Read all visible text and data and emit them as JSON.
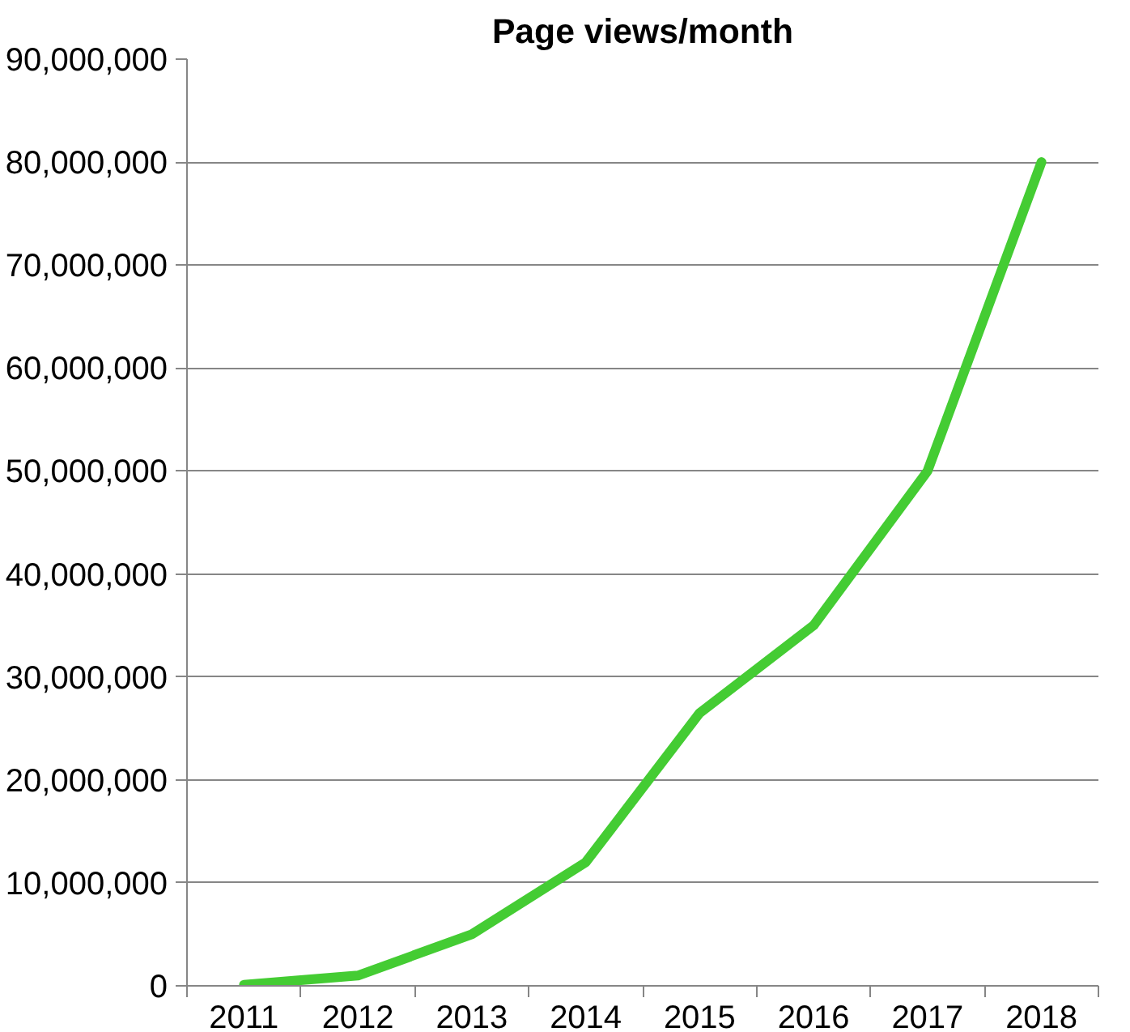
{
  "chart_data": {
    "type": "line",
    "title": "Page views/month",
    "categories": [
      "2011",
      "2012",
      "2013",
      "2014",
      "2015",
      "2016",
      "2017",
      "2018"
    ],
    "series": [
      {
        "color": "#44cc33",
        "values": [
          100000,
          1000000,
          5000000,
          12000000,
          26500000,
          35000000,
          50000000,
          80000000
        ]
      }
    ],
    "ylim": [
      0,
      90000000
    ],
    "yticks": [
      {
        "value": 0,
        "label": "0"
      },
      {
        "value": 10000000,
        "label": "10,000,000"
      },
      {
        "value": 20000000,
        "label": "20,000,000"
      },
      {
        "value": 30000000,
        "label": "30,000,000"
      },
      {
        "value": 40000000,
        "label": "40,000,000"
      },
      {
        "value": 50000000,
        "label": "50,000,000"
      },
      {
        "value": 60000000,
        "label": "60,000,000"
      },
      {
        "value": 70000000,
        "label": "70,000,000"
      },
      {
        "value": 80000000,
        "label": "80,000,000"
      },
      {
        "value": 90000000,
        "label": "90,000,000"
      }
    ],
    "grid": "y",
    "marker": "none",
    "line_style": "solid"
  }
}
